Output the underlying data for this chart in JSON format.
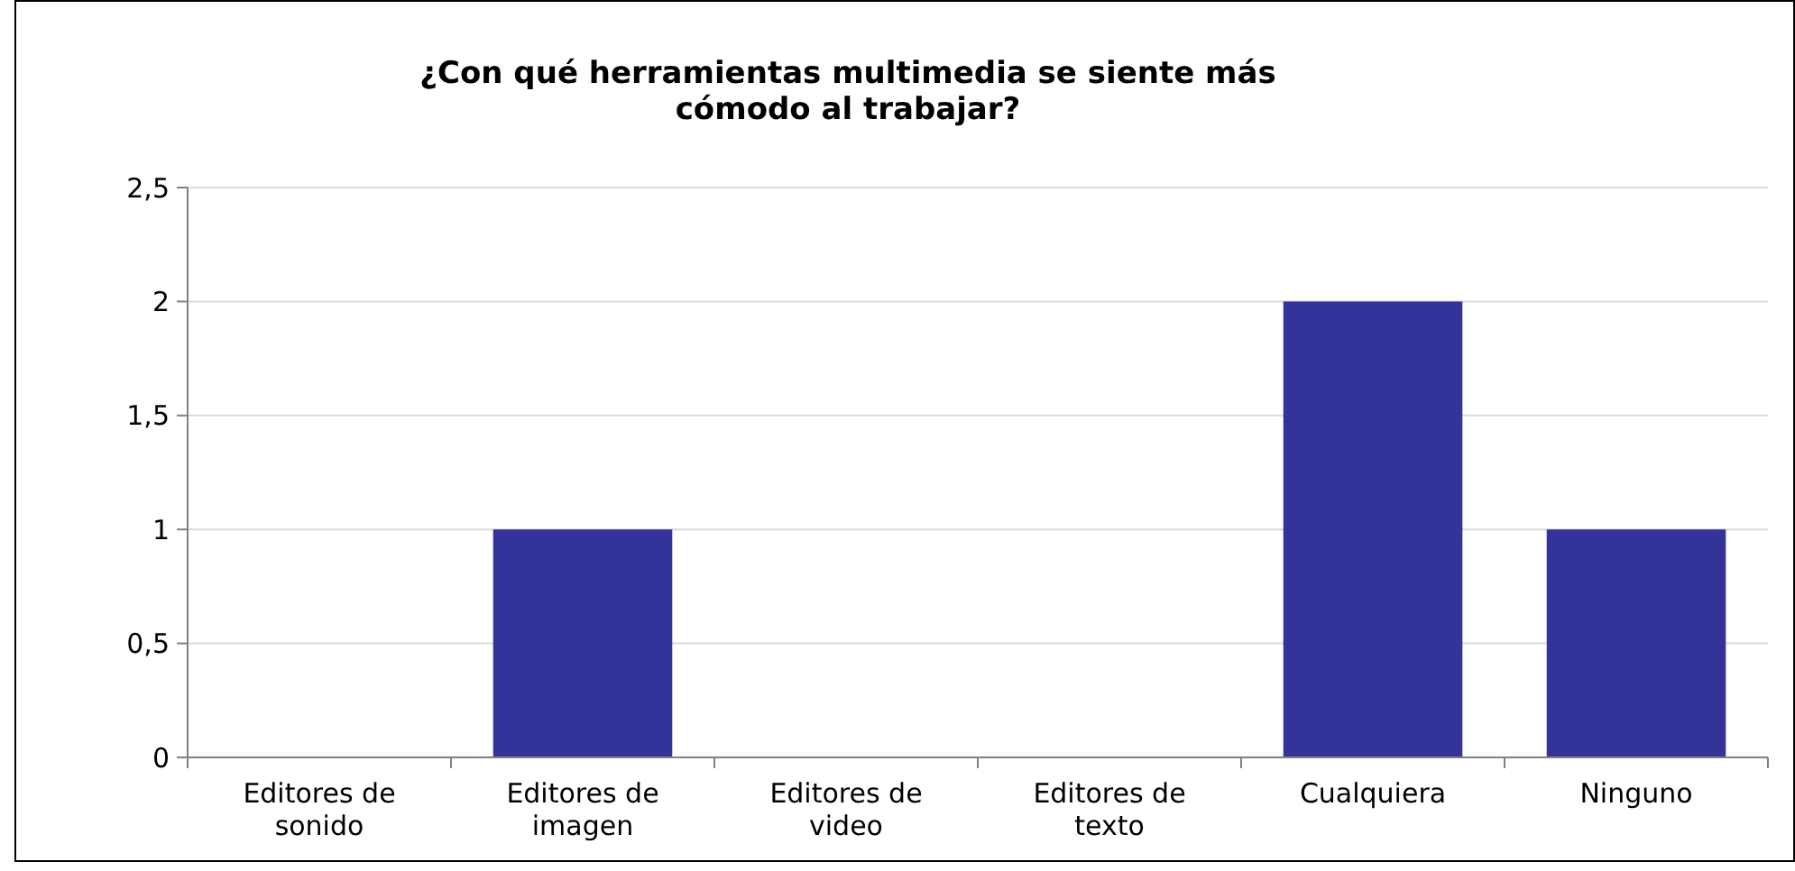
{
  "chart_data": {
    "type": "bar",
    "title": "¿Con qué herramientas multimedia se siente más cómodo al trabajar?",
    "categories": [
      "Editores de sonido",
      "Editores de imagen",
      "Editores de video",
      "Editores de texto",
      "Cualquiera",
      "Ninguno"
    ],
    "values": [
      0,
      1,
      0,
      0,
      2,
      1
    ],
    "color": "#333399",
    "ylim": [
      0,
      2.5
    ],
    "yticks": [
      0,
      {
        "value": 0.5,
        "label": "0,5"
      },
      1,
      {
        "value": 1.5,
        "label": "1,5"
      },
      2,
      {
        "value": 2.5,
        "label": "2,5"
      }
    ],
    "grid": "y"
  }
}
